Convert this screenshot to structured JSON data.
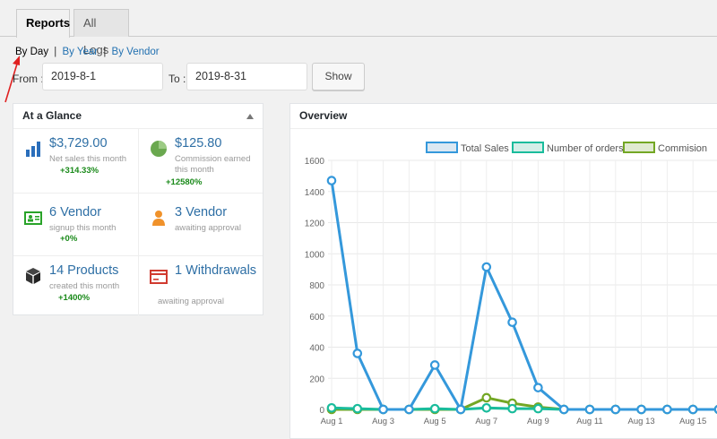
{
  "tabs": [
    {
      "label": "Reports",
      "active": true
    },
    {
      "label": "All Logs",
      "active": false
    }
  ],
  "subnav": {
    "by_day": "By Day",
    "by_year": "By Year",
    "by_vendor": "By Vendor",
    "separator": "|"
  },
  "filter": {
    "from_label": "From :",
    "from_value": "2019-8-1",
    "to_label": "To :",
    "to_value": "2019-8-31",
    "show_label": "Show"
  },
  "glance": {
    "title": "At a Glance",
    "cells": [
      {
        "icon": "bar-chart-icon",
        "value": "$3,729.00",
        "caption": "Net sales this month",
        "growth": "+314.33%"
      },
      {
        "icon": "pie-chart-icon",
        "value": "$125.80",
        "caption": "Commission earned this month",
        "growth": "+12580%"
      },
      {
        "icon": "id-card-icon",
        "value": "6 Vendor",
        "caption": "signup this month",
        "growth": "+0%"
      },
      {
        "icon": "person-icon",
        "value": "3 Vendor",
        "caption": "awaiting approval",
        "growth": ""
      },
      {
        "icon": "box-icon",
        "value": "14 Products",
        "caption": "created this month",
        "growth": "+1400%"
      },
      {
        "icon": "withdraw-icon",
        "value": "1 Withdrawals",
        "caption": "awaiting approval",
        "growth": ""
      }
    ]
  },
  "overview": {
    "title": "Overview"
  },
  "chart_data": {
    "type": "line",
    "title": "",
    "x": [
      "Aug 1",
      "Aug 2",
      "Aug 3",
      "Aug 4",
      "Aug 5",
      "Aug 6",
      "Aug 7",
      "Aug 8",
      "Aug 9",
      "Aug 10",
      "Aug 11",
      "Aug 12",
      "Aug 13",
      "Aug 14",
      "Aug 15",
      "Aug 16"
    ],
    "x_tick_labels": [
      "Aug 1",
      "Aug 3",
      "Aug 5",
      "Aug 7",
      "Aug 9",
      "Aug 11",
      "Aug 13",
      "Aug 15"
    ],
    "ylim": [
      0,
      1600
    ],
    "y_ticks": [
      0,
      200,
      400,
      600,
      800,
      1000,
      1200,
      1400,
      1600
    ],
    "grid": true,
    "legend_position": "top",
    "series": [
      {
        "name": "Total Sales",
        "color": "#3498db",
        "fill": "#dbe8f2",
        "values": [
          1470,
          360,
          0,
          0,
          285,
          0,
          915,
          560,
          140,
          0,
          0,
          0,
          0,
          0,
          0,
          0
        ]
      },
      {
        "name": "Number of orders",
        "color": "#1abc9c",
        "fill": "#d4eee8",
        "values": [
          10,
          5,
          0,
          0,
          5,
          0,
          10,
          5,
          5,
          0,
          0,
          0,
          0,
          0,
          0,
          0
        ]
      },
      {
        "name": "Commision",
        "color": "#73a724",
        "fill": "#e0ead1",
        "values": [
          0,
          0,
          0,
          0,
          0,
          0,
          75,
          40,
          15,
          0,
          0,
          0,
          0,
          0,
          0,
          0
        ]
      }
    ]
  }
}
